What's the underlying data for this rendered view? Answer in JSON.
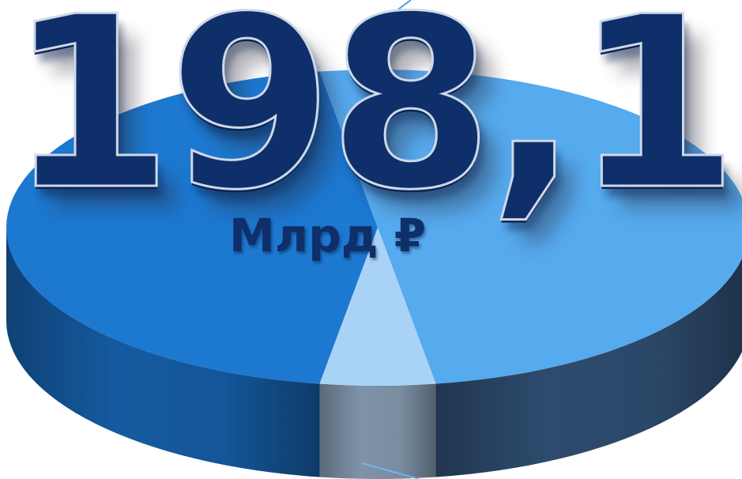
{
  "value_text": "198,1",
  "unit_text": "Млрд ₽",
  "chart_data": {
    "type": "pie",
    "style": "3d",
    "slice_shares": [
      0.45,
      0.5,
      0.05
    ],
    "slice_colors_top": [
      "#1d78d0",
      "#56aaee",
      "#a9d3f6"
    ],
    "slice_colors_side": [
      "#155aa0",
      "#2d4b6e",
      "#7f93a8"
    ]
  }
}
